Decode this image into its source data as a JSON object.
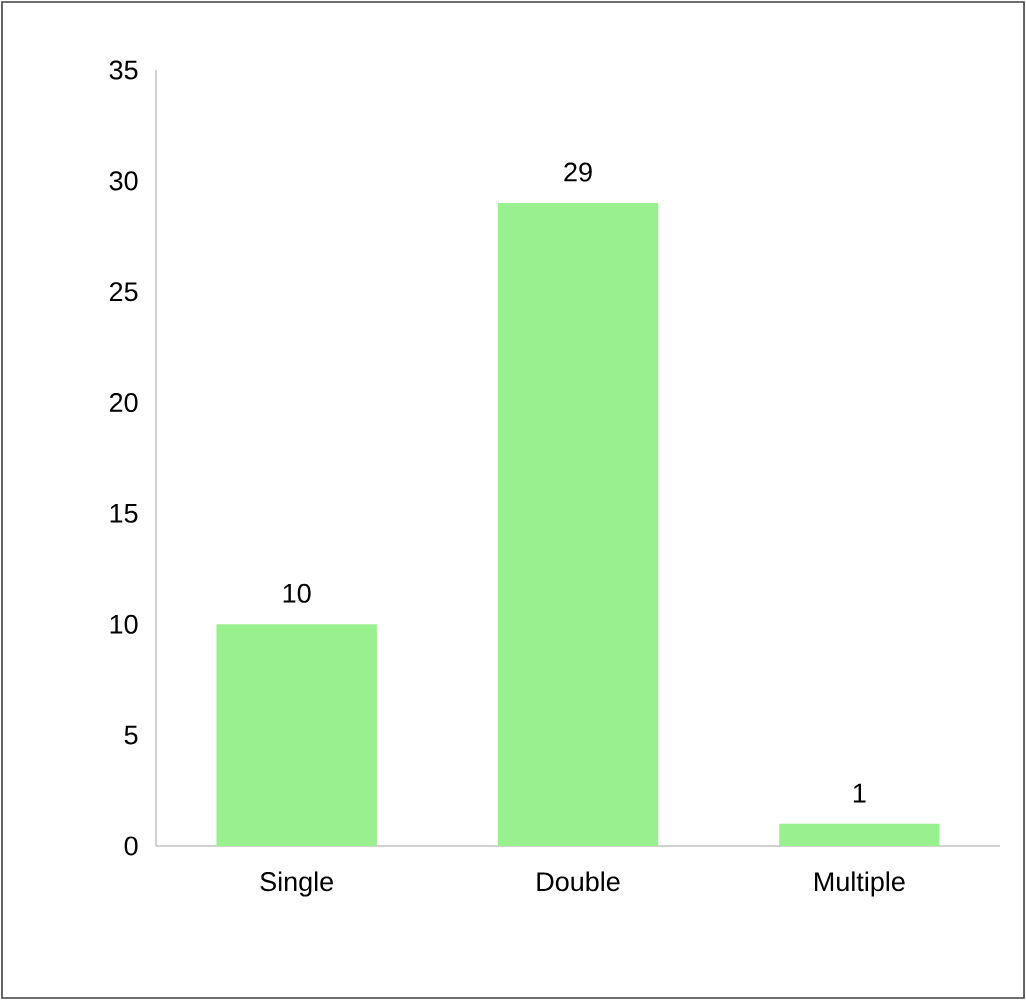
{
  "chart_data": {
    "type": "bar",
    "categories": [
      "Single",
      "Double",
      "Multiple"
    ],
    "values": [
      10,
      29,
      1
    ],
    "color": "#98f08e",
    "ylim": [
      0,
      35
    ],
    "yticks": [
      0,
      5,
      10,
      15,
      20,
      25,
      30,
      35
    ],
    "data_labels": true
  }
}
